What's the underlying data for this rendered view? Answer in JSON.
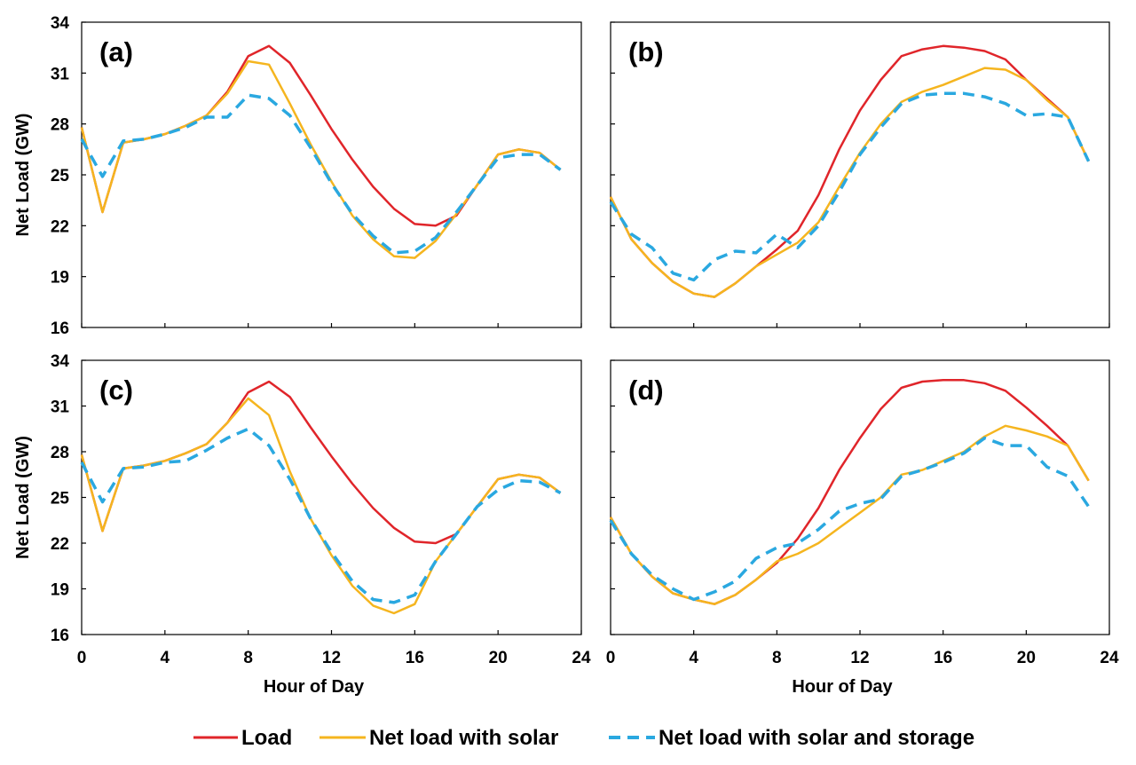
{
  "chart_data": [
    {
      "type": "line",
      "panel_label": "(a)",
      "ylabel": "Net Load (GW)",
      "xlabel": "",
      "xlim": [
        0,
        24
      ],
      "ylim": [
        16,
        34
      ],
      "xticks": [
        "0",
        "4",
        "8",
        "12",
        "16",
        "20",
        "24"
      ],
      "yticks": [
        "16",
        "19",
        "22",
        "25",
        "28",
        "31",
        "34"
      ],
      "x": [
        0,
        1,
        2,
        3,
        4,
        5,
        6,
        7,
        8,
        9,
        10,
        11,
        12,
        13,
        14,
        15,
        16,
        17,
        18,
        19,
        20,
        21,
        22,
        23
      ],
      "series": [
        {
          "name": "Load",
          "values": [
            27.8,
            22.8,
            26.9,
            27.1,
            27.4,
            27.9,
            28.5,
            29.9,
            32.0,
            32.6,
            31.6,
            29.7,
            27.7,
            25.9,
            24.3,
            23.0,
            22.1,
            22.0,
            22.6,
            24.4,
            26.2,
            26.5,
            26.3,
            25.3
          ]
        },
        {
          "name": "Net load with solar",
          "values": [
            27.8,
            22.8,
            26.9,
            27.1,
            27.4,
            27.9,
            28.5,
            29.8,
            31.7,
            31.5,
            29.2,
            26.8,
            24.6,
            22.6,
            21.2,
            20.2,
            20.1,
            21.1,
            22.7,
            24.4,
            26.2,
            26.5,
            26.3,
            25.3
          ]
        },
        {
          "name": "Net load with solar and storage",
          "values": [
            27.1,
            24.9,
            27.0,
            27.1,
            27.4,
            27.8,
            28.4,
            28.4,
            29.7,
            29.5,
            28.5,
            26.6,
            24.5,
            22.7,
            21.4,
            20.4,
            20.5,
            21.3,
            22.8,
            24.4,
            26.0,
            26.2,
            26.2,
            25.3
          ]
        }
      ]
    },
    {
      "type": "line",
      "panel_label": "(b)",
      "ylabel": "",
      "xlabel": "",
      "xlim": [
        0,
        24
      ],
      "ylim": [
        16,
        34
      ],
      "xticks": [],
      "yticks": [],
      "x": [
        0,
        1,
        2,
        3,
        4,
        5,
        6,
        7,
        8,
        9,
        10,
        11,
        12,
        13,
        14,
        15,
        16,
        17,
        18,
        19,
        20,
        21,
        22,
        23
      ],
      "series": [
        {
          "name": "Load",
          "values": [
            23.7,
            21.2,
            19.8,
            18.7,
            18.0,
            17.8,
            18.6,
            19.6,
            20.6,
            21.7,
            23.8,
            26.5,
            28.8,
            30.6,
            32.0,
            32.4,
            32.6,
            32.5,
            32.3,
            31.8,
            30.6,
            29.5,
            28.4,
            25.8
          ]
        },
        {
          "name": "Net load with solar",
          "values": [
            23.7,
            21.2,
            19.8,
            18.7,
            18.0,
            17.8,
            18.6,
            19.6,
            20.3,
            21.0,
            22.2,
            24.3,
            26.3,
            28.0,
            29.3,
            29.9,
            30.3,
            30.8,
            31.3,
            31.2,
            30.6,
            29.4,
            28.4,
            25.8
          ]
        },
        {
          "name": "Net load with solar and storage",
          "values": [
            23.4,
            21.5,
            20.7,
            19.2,
            18.8,
            20.0,
            20.5,
            20.4,
            21.5,
            20.7,
            22.0,
            24.0,
            26.2,
            27.8,
            29.2,
            29.7,
            29.8,
            29.8,
            29.6,
            29.2,
            28.5,
            28.6,
            28.4,
            25.8
          ]
        }
      ]
    },
    {
      "type": "line",
      "panel_label": "(c)",
      "ylabel": "Net Load (GW)",
      "xlabel": "Hour of Day",
      "xlim": [
        0,
        24
      ],
      "ylim": [
        16,
        34
      ],
      "xticks": [
        "0",
        "4",
        "8",
        "12",
        "16",
        "20",
        "24"
      ],
      "yticks": [
        "16",
        "19",
        "22",
        "25",
        "28",
        "31",
        "34"
      ],
      "x": [
        0,
        1,
        2,
        3,
        4,
        5,
        6,
        7,
        8,
        9,
        10,
        11,
        12,
        13,
        14,
        15,
        16,
        17,
        18,
        19,
        20,
        21,
        22,
        23
      ],
      "series": [
        {
          "name": "Load",
          "values": [
            27.8,
            22.8,
            26.9,
            27.1,
            27.4,
            27.9,
            28.5,
            29.9,
            31.9,
            32.6,
            31.6,
            29.6,
            27.7,
            25.9,
            24.3,
            23.0,
            22.1,
            22.0,
            22.6,
            24.4,
            26.2,
            26.5,
            26.3,
            25.3
          ]
        },
        {
          "name": "Net load with solar",
          "values": [
            27.8,
            22.8,
            26.9,
            27.1,
            27.4,
            27.9,
            28.5,
            29.9,
            31.5,
            30.4,
            26.7,
            23.6,
            21.2,
            19.2,
            17.9,
            17.4,
            18.0,
            20.8,
            22.6,
            24.4,
            26.2,
            26.5,
            26.3,
            25.3
          ]
        },
        {
          "name": "Net load with solar and storage",
          "values": [
            27.3,
            24.7,
            26.9,
            27.0,
            27.3,
            27.4,
            28.1,
            28.9,
            29.5,
            28.4,
            26.2,
            23.6,
            21.4,
            19.5,
            18.3,
            18.1,
            18.6,
            20.8,
            22.6,
            24.4,
            25.5,
            26.1,
            26.0,
            25.3
          ]
        }
      ]
    },
    {
      "type": "line",
      "panel_label": "(d)",
      "ylabel": "",
      "xlabel": "Hour of Day",
      "xlim": [
        0,
        24
      ],
      "ylim": [
        16,
        34
      ],
      "xticks": [
        "0",
        "4",
        "8",
        "12",
        "16",
        "20",
        "24"
      ],
      "yticks": [],
      "x": [
        0,
        1,
        2,
        3,
        4,
        5,
        6,
        7,
        8,
        9,
        10,
        11,
        12,
        13,
        14,
        15,
        16,
        17,
        18,
        19,
        20,
        21,
        22,
        23
      ],
      "series": [
        {
          "name": "Load",
          "values": [
            23.7,
            21.3,
            19.8,
            18.7,
            18.3,
            18.0,
            18.6,
            19.6,
            20.7,
            22.3,
            24.3,
            26.8,
            28.9,
            30.8,
            32.2,
            32.6,
            32.7,
            32.7,
            32.5,
            32.0,
            30.9,
            29.7,
            28.4,
            26.1
          ]
        },
        {
          "name": "Net load with solar",
          "values": [
            23.7,
            21.3,
            19.8,
            18.7,
            18.3,
            18.0,
            18.6,
            19.6,
            20.8,
            21.3,
            22.0,
            23.0,
            24.0,
            25.0,
            26.5,
            26.8,
            27.4,
            28.0,
            29.0,
            29.7,
            29.4,
            29.0,
            28.4,
            26.1
          ]
        },
        {
          "name": "Net load with solar and storage",
          "values": [
            23.5,
            21.3,
            19.9,
            19.0,
            18.3,
            18.8,
            19.5,
            21.0,
            21.7,
            22.0,
            22.9,
            24.1,
            24.6,
            24.9,
            26.4,
            26.8,
            27.3,
            27.9,
            28.9,
            28.4,
            28.4,
            27.0,
            26.4,
            24.4
          ]
        }
      ]
    }
  ],
  "legend": {
    "items": [
      {
        "label": "Load",
        "color": "#e0252a",
        "dash": "solid"
      },
      {
        "label": "Net load with solar",
        "color": "#f5b51f",
        "dash": "solid"
      },
      {
        "label": "Net load with solar and storage",
        "color": "#2aa8e0",
        "dash": "dashed"
      }
    ],
    "placement": "bottom"
  },
  "colors": {
    "load": "#e0252a",
    "solar": "#f5b51f",
    "storage": "#2aa8e0",
    "axis": "#000000"
  }
}
